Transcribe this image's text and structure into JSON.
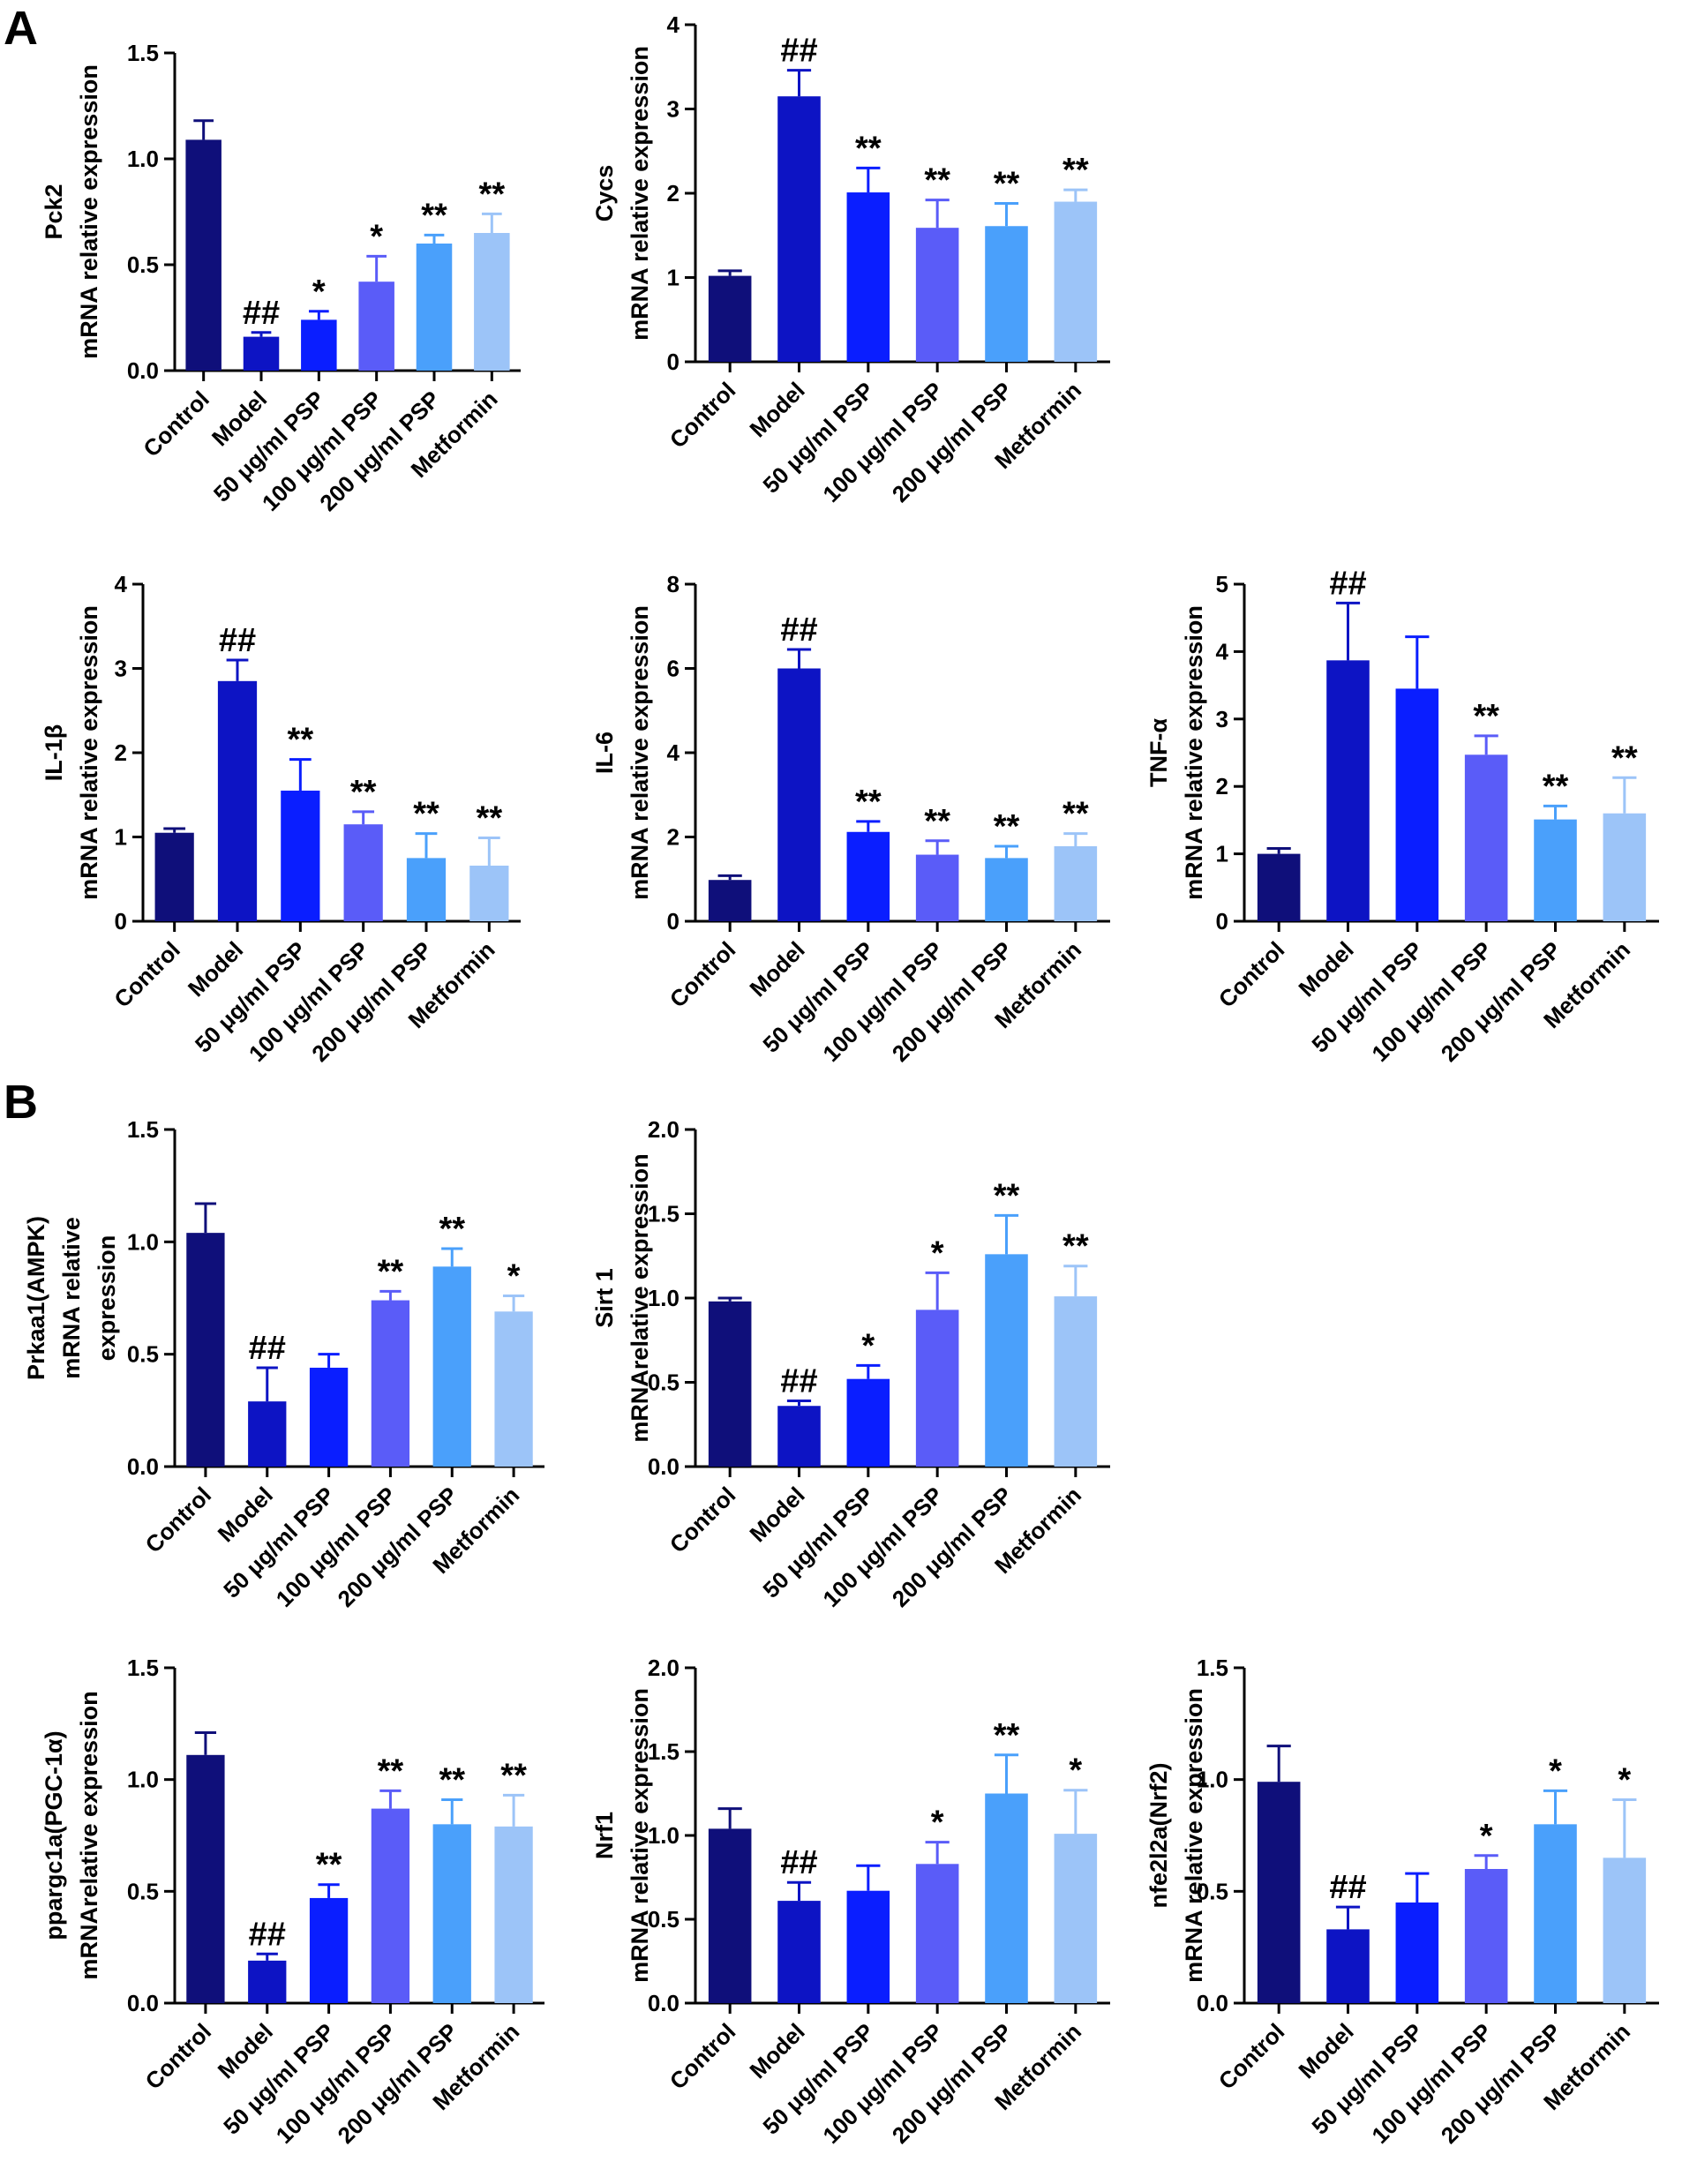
{
  "panel_labels": [
    "A",
    "B"
  ],
  "colors": [
    "#0f0f7a",
    "#0d14c4",
    "#0a1eff",
    "#5a5cf8",
    "#4aa0fb",
    "#9cc4f8"
  ],
  "chart_data": [
    {
      "id": "pck2",
      "panel": "A",
      "type": "bar",
      "ylabel": [
        "Pck2",
        "mRNA relative expression"
      ],
      "ylim": [
        0,
        1.5
      ],
      "yticks": [
        "0.0",
        "0.5",
        "1.0",
        "1.5"
      ],
      "categories": [
        "Control",
        "Model",
        "50 μg/ml PSP",
        "100 μg/ml PSP",
        "200 μg/ml PSP",
        "Metformin"
      ],
      "values": [
        1.09,
        0.16,
        0.24,
        0.42,
        0.6,
        0.65
      ],
      "errors": [
        0.09,
        0.02,
        0.04,
        0.12,
        0.04,
        0.09
      ],
      "significance": [
        "",
        "##",
        "*",
        "*",
        "**",
        "**"
      ]
    },
    {
      "id": "cycs",
      "panel": "A",
      "type": "bar",
      "ylabel": [
        "Cycs",
        "mRNA relative expression"
      ],
      "ylim": [
        0,
        4
      ],
      "yticks": [
        "0",
        "1",
        "2",
        "3",
        "4"
      ],
      "categories": [
        "Control",
        "Model",
        "50 μg/ml PSP",
        "100 μg/ml PSP",
        "200 μg/ml PSP",
        "Metformin"
      ],
      "values": [
        1.02,
        3.15,
        2.01,
        1.59,
        1.61,
        1.9
      ],
      "errors": [
        0.06,
        0.31,
        0.29,
        0.33,
        0.27,
        0.14
      ],
      "significance": [
        "",
        "##",
        "**",
        "**",
        "**",
        "**"
      ]
    },
    {
      "id": "il1b",
      "panel": "A",
      "type": "bar",
      "ylabel": [
        "IL-1β",
        "mRNA relative expression"
      ],
      "ylim": [
        0,
        4
      ],
      "yticks": [
        "0",
        "1",
        "2",
        "3",
        "4"
      ],
      "categories": [
        "Control",
        "Model",
        "50 μg/ml PSP",
        "100 μg/ml PSP",
        "200 μg/ml PSP",
        "Metformin"
      ],
      "values": [
        1.05,
        2.85,
        1.55,
        1.15,
        0.75,
        0.66
      ],
      "errors": [
        0.05,
        0.25,
        0.37,
        0.15,
        0.29,
        0.33
      ],
      "significance": [
        "",
        "##",
        "**",
        "**",
        "**",
        "**"
      ]
    },
    {
      "id": "il6",
      "panel": "A",
      "type": "bar",
      "ylabel": [
        "IL-6",
        "mRNA relative expression"
      ],
      "ylim": [
        0,
        8
      ],
      "yticks": [
        "0",
        "2",
        "4",
        "6",
        "8"
      ],
      "categories": [
        "Control",
        "Model",
        "50 μg/ml PSP",
        "100 μg/ml PSP",
        "200 μg/ml PSP",
        "Metformin"
      ],
      "values": [
        0.98,
        6.0,
        2.12,
        1.58,
        1.5,
        1.78
      ],
      "errors": [
        0.1,
        0.45,
        0.25,
        0.33,
        0.28,
        0.3
      ],
      "significance": [
        "",
        "##",
        "**",
        "**",
        "**",
        "**"
      ]
    },
    {
      "id": "tnfa",
      "panel": "A",
      "type": "bar",
      "ylabel": [
        "TNF-α",
        "mRNA relative expression"
      ],
      "ylim": [
        0,
        5
      ],
      "yticks": [
        "0",
        "1",
        "2",
        "3",
        "4",
        "5"
      ],
      "categories": [
        "Control",
        "Model",
        "50 μg/ml PSP",
        "100 μg/ml PSP",
        "200 μg/ml PSP",
        "Metformin"
      ],
      "values": [
        1.0,
        3.87,
        3.45,
        2.47,
        1.51,
        1.6
      ],
      "errors": [
        0.08,
        0.85,
        0.77,
        0.28,
        0.2,
        0.53
      ],
      "significance": [
        "",
        "##",
        "",
        "**",
        "**",
        "**"
      ]
    },
    {
      "id": "prkaa1",
      "panel": "B",
      "type": "bar",
      "ylabel": [
        "Prkaa1(AMPK)",
        "mRNA relative",
        "expression"
      ],
      "ylim": [
        0,
        1.5
      ],
      "yticks": [
        "0.0",
        "0.5",
        "1.0",
        "1.5"
      ],
      "categories": [
        "Control",
        "Model",
        "50 μg/ml PSP",
        "100 μg/ml PSP",
        "200 μg/ml PSP",
        "Metformin"
      ],
      "values": [
        1.04,
        0.29,
        0.44,
        0.74,
        0.89,
        0.69
      ],
      "errors": [
        0.13,
        0.15,
        0.06,
        0.04,
        0.08,
        0.07
      ],
      "significance": [
        "",
        "##",
        "",
        "**",
        "**",
        "*"
      ]
    },
    {
      "id": "sirt1",
      "panel": "B",
      "type": "bar",
      "ylabel": [
        "Sirt 1",
        "mRNArelative expression"
      ],
      "ylim": [
        0,
        2.0
      ],
      "yticks": [
        "0.0",
        "0.5",
        "1.0",
        "1.5",
        "2.0"
      ],
      "categories": [
        "Control",
        "Model",
        "50 μg/ml PSP",
        "100 μg/ml PSP",
        "200 μg/ml PSP",
        "Metformin"
      ],
      "values": [
        0.98,
        0.36,
        0.52,
        0.93,
        1.26,
        1.01
      ],
      "errors": [
        0.02,
        0.03,
        0.08,
        0.22,
        0.23,
        0.18
      ],
      "significance": [
        "",
        "##",
        "*",
        "*",
        "**",
        "**"
      ]
    },
    {
      "id": "ppargc1a",
      "panel": "B",
      "type": "bar",
      "ylabel": [
        "ppargc1a(PGC-1α)",
        "mRNArelative expression"
      ],
      "ylim": [
        0,
        1.5
      ],
      "yticks": [
        "0.0",
        "0.5",
        "1.0",
        "1.5"
      ],
      "categories": [
        "Control",
        "Model",
        "50 μg/ml PSP",
        "100 μg/ml PSP",
        "200 μg/ml PSP",
        "Metformin"
      ],
      "values": [
        1.11,
        0.19,
        0.47,
        0.87,
        0.8,
        0.79
      ],
      "errors": [
        0.1,
        0.03,
        0.06,
        0.08,
        0.11,
        0.14
      ],
      "significance": [
        "",
        "##",
        "**",
        "**",
        "**",
        "**"
      ]
    },
    {
      "id": "nrf1",
      "panel": "B",
      "type": "bar",
      "ylabel": [
        "Nrf1",
        "mRNA relative expression"
      ],
      "ylim": [
        0,
        2.0
      ],
      "yticks": [
        "0.0",
        "0.5",
        "1.0",
        "1.5",
        "2.0"
      ],
      "categories": [
        "Control",
        "Model",
        "50 μg/ml PSP",
        "100 μg/ml PSP",
        "200 μg/ml PSP",
        "Metformin"
      ],
      "values": [
        1.04,
        0.61,
        0.67,
        0.83,
        1.25,
        1.01
      ],
      "errors": [
        0.12,
        0.11,
        0.15,
        0.13,
        0.23,
        0.26
      ],
      "significance": [
        "",
        "##",
        "",
        "*",
        "**",
        "*"
      ]
    },
    {
      "id": "nfe2l2a",
      "panel": "B",
      "type": "bar",
      "ylabel": [
        "nfe2l2a(Nrf2)",
        "mRNA relative expression"
      ],
      "ylim": [
        0,
        1.5
      ],
      "yticks": [
        "0.0",
        "0.5",
        "1.0",
        "1.5"
      ],
      "categories": [
        "Control",
        "Model",
        "50 μg/ml PSP",
        "100 μg/ml PSP",
        "200 μg/ml PSP",
        "Metformin"
      ],
      "values": [
        0.99,
        0.33,
        0.45,
        0.6,
        0.8,
        0.65
      ],
      "errors": [
        0.16,
        0.1,
        0.13,
        0.06,
        0.15,
        0.26
      ],
      "significance": [
        "",
        "##",
        "",
        "*",
        "*",
        "*"
      ]
    }
  ]
}
